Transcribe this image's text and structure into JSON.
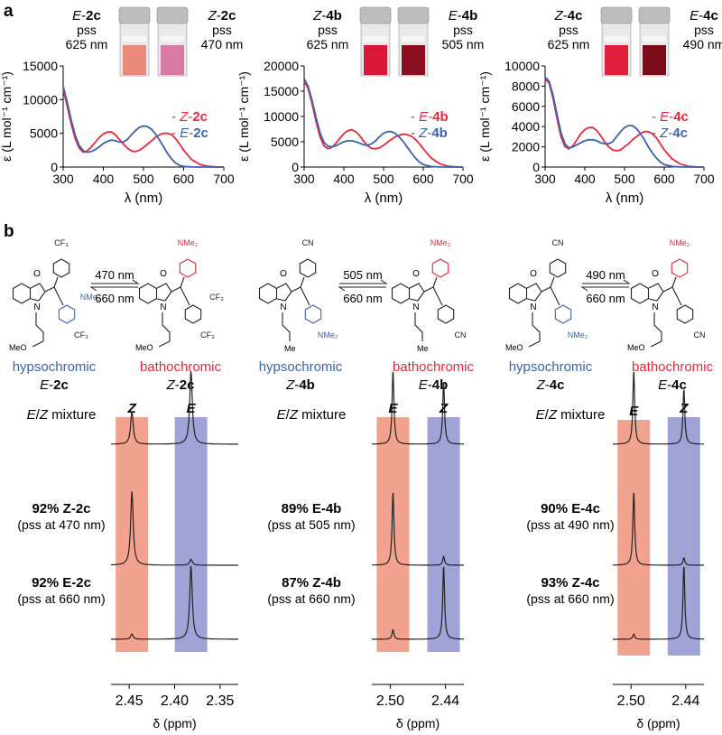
{
  "panel_a_label": "a",
  "panel_b_label": "b",
  "colors": {
    "red": "#e8283a",
    "blue": "#3a62b0",
    "spec": "#222222",
    "shade_red": "#f0937d",
    "shade_blue": "#8e93cf"
  },
  "chart_data": [
    {
      "type": "line",
      "id": "2c",
      "xlabel": "λ (nm)",
      "ylabel": "ε (L mol⁻¹ cm⁻¹)",
      "xlim": [
        300,
        700
      ],
      "ylim": [
        0,
        15000
      ],
      "xticks": [
        300,
        400,
        500,
        600,
        700
      ],
      "yticks": [
        0,
        5000,
        10000,
        15000
      ],
      "cuvettes": [
        {
          "isomer": "E",
          "compound": "-2c",
          "line2": "pss",
          "line3": "625 nm"
        },
        {
          "isomer": "Z",
          "compound": "-2c",
          "line2": "pss",
          "line3": "470 nm"
        }
      ],
      "legend": [
        {
          "isomer": "Z",
          "compound": "-2c",
          "color": "red"
        },
        {
          "isomer": "E",
          "compound": "-2c",
          "color": "blue"
        }
      ],
      "series": [
        {
          "name": "Z-2c",
          "color": "red",
          "x": [
            300,
            310,
            320,
            330,
            340,
            350,
            360,
            370,
            380,
            390,
            400,
            410,
            420,
            430,
            440,
            450,
            460,
            470,
            480,
            490,
            500,
            510,
            520,
            530,
            540,
            550,
            560,
            570,
            580,
            590,
            600,
            620,
            640,
            660,
            680,
            700
          ],
          "y": [
            11500,
            9000,
            6400,
            4200,
            2800,
            2200,
            2400,
            3000,
            3700,
            4400,
            4900,
            5200,
            5200,
            4800,
            4100,
            3400,
            2800,
            2400,
            2300,
            2500,
            2900,
            3400,
            3900,
            4400,
            4800,
            5000,
            5000,
            4800,
            4200,
            3400,
            2500,
            1100,
            400,
            120,
            30,
            0
          ]
        },
        {
          "name": "E-2c",
          "color": "blue",
          "x": [
            300,
            310,
            320,
            330,
            340,
            350,
            360,
            370,
            380,
            390,
            400,
            410,
            420,
            430,
            440,
            450,
            460,
            470,
            480,
            490,
            500,
            510,
            520,
            530,
            540,
            550,
            560,
            570,
            580,
            590,
            600,
            620,
            640,
            660,
            680,
            700
          ],
          "y": [
            12000,
            9600,
            7000,
            4700,
            3200,
            2400,
            2200,
            2300,
            2600,
            3000,
            3500,
            3800,
            4000,
            3900,
            3700,
            3700,
            4100,
            4800,
            5400,
            5900,
            6100,
            6000,
            5600,
            4900,
            4000,
            3000,
            2000,
            1200,
            600,
            250,
            100,
            20,
            0,
            0,
            0,
            0
          ]
        }
      ]
    },
    {
      "type": "line",
      "id": "4b",
      "xlabel": "λ (nm)",
      "ylabel": "ε (L mol⁻¹ cm⁻¹)",
      "xlim": [
        300,
        700
      ],
      "ylim": [
        0,
        20000
      ],
      "xticks": [
        300,
        400,
        500,
        600,
        700
      ],
      "yticks": [
        0,
        5000,
        10000,
        15000,
        20000
      ],
      "cuvettes": [
        {
          "isomer": "Z",
          "compound": "-4b",
          "line2": "pss",
          "line3": "625 nm"
        },
        {
          "isomer": "E",
          "compound": "-4b",
          "line2": "pss",
          "line3": "505 nm"
        }
      ],
      "legend": [
        {
          "isomer": "E",
          "compound": "-4b",
          "color": "red"
        },
        {
          "isomer": "Z",
          "compound": "-4b",
          "color": "blue"
        }
      ],
      "series": [
        {
          "name": "E-4b",
          "color": "red",
          "x": [
            300,
            310,
            320,
            330,
            340,
            350,
            360,
            370,
            380,
            390,
            400,
            410,
            420,
            430,
            440,
            450,
            460,
            470,
            480,
            490,
            500,
            510,
            520,
            530,
            540,
            550,
            560,
            570,
            580,
            590,
            600,
            620,
            640,
            660,
            680,
            700
          ],
          "y": [
            17000,
            15500,
            12500,
            9000,
            6000,
            4200,
            3600,
            3900,
            4700,
            5700,
            6600,
            7200,
            7400,
            7000,
            6200,
            5100,
            4200,
            3700,
            3600,
            3800,
            4300,
            4900,
            5500,
            6000,
            6300,
            6500,
            6400,
            6100,
            5500,
            4600,
            3600,
            1800,
            700,
            200,
            50,
            0
          ]
        },
        {
          "name": "Z-4b",
          "color": "blue",
          "x": [
            300,
            310,
            320,
            330,
            340,
            350,
            360,
            370,
            380,
            390,
            400,
            410,
            420,
            430,
            440,
            450,
            460,
            470,
            480,
            490,
            500,
            510,
            520,
            530,
            540,
            550,
            560,
            570,
            580,
            590,
            600,
            620,
            640,
            660,
            680,
            700
          ],
          "y": [
            17500,
            16000,
            13200,
            9800,
            6800,
            4900,
            4100,
            4000,
            4200,
            4600,
            5000,
            5200,
            5200,
            5000,
            4700,
            4400,
            4300,
            4600,
            5200,
            6000,
            6700,
            7000,
            7000,
            6600,
            5900,
            5000,
            3900,
            2800,
            1800,
            1000,
            500,
            100,
            20,
            0,
            0,
            0
          ]
        }
      ]
    },
    {
      "type": "line",
      "id": "4c",
      "xlabel": "λ (nm)",
      "ylabel": "ε (L mol⁻¹ cm⁻¹)",
      "xlim": [
        300,
        700
      ],
      "ylim": [
        0,
        10000
      ],
      "xticks": [
        300,
        400,
        500,
        600,
        700
      ],
      "yticks": [
        0,
        2000,
        4000,
        6000,
        8000,
        10000
      ],
      "cuvettes": [
        {
          "isomer": "Z",
          "compound": "-4c",
          "line2": "pss",
          "line3": "625 nm"
        },
        {
          "isomer": "E",
          "compound": "-4c",
          "line2": "pss",
          "line3": "490 nm"
        }
      ],
      "legend": [
        {
          "isomer": "E",
          "compound": "-4c",
          "color": "red"
        },
        {
          "isomer": "Z",
          "compound": "-4c",
          "color": "blue"
        }
      ],
      "series": [
        {
          "name": "E-4c",
          "color": "red",
          "x": [
            300,
            310,
            320,
            330,
            340,
            350,
            360,
            370,
            380,
            390,
            400,
            410,
            420,
            430,
            440,
            450,
            460,
            470,
            480,
            490,
            500,
            510,
            520,
            530,
            540,
            550,
            560,
            570,
            580,
            590,
            600,
            620,
            640,
            660,
            680,
            700
          ],
          "y": [
            8700,
            8300,
            6800,
            4800,
            3000,
            2000,
            1800,
            2100,
            2700,
            3300,
            3700,
            3900,
            3900,
            3600,
            3100,
            2500,
            2000,
            1700,
            1600,
            1700,
            2000,
            2300,
            2700,
            3000,
            3300,
            3500,
            3500,
            3300,
            2900,
            2300,
            1700,
            800,
            300,
            80,
            20,
            0
          ]
        },
        {
          "name": "Z-4c",
          "color": "blue",
          "x": [
            300,
            310,
            320,
            330,
            340,
            350,
            360,
            370,
            380,
            390,
            400,
            410,
            420,
            430,
            440,
            450,
            460,
            470,
            480,
            490,
            500,
            510,
            520,
            530,
            540,
            550,
            560,
            570,
            580,
            590,
            600,
            620,
            640,
            660,
            680,
            700
          ],
          "y": [
            8900,
            8500,
            7100,
            5200,
            3400,
            2300,
            1900,
            2000,
            2200,
            2400,
            2600,
            2700,
            2700,
            2600,
            2400,
            2300,
            2300,
            2500,
            3000,
            3500,
            3900,
            4100,
            4100,
            3800,
            3300,
            2700,
            2000,
            1400,
            900,
            500,
            250,
            60,
            10,
            0,
            0,
            0
          ]
        }
      ]
    },
    {
      "type": "line",
      "id": "nmr-2c",
      "xlabel": "δ (ppm)",
      "xlim": [
        2.47,
        2.33
      ],
      "xticks": [
        2.45,
        2.4,
        2.35
      ],
      "xtick_labels": [
        "2.45",
        "2.40",
        "2.35"
      ],
      "bands": [
        {
          "label": "Z",
          "center": 2.447,
          "color": "shade_red"
        },
        {
          "label": "E",
          "center": 2.382,
          "color": "shade_blue"
        }
      ],
      "traces": [
        {
          "label_prefix": "",
          "label_bold": "",
          "label_suffix": "",
          "italic_parts": [
            "E",
            "/",
            "Z",
            " mixture"
          ],
          "sub": "",
          "peaks": [
            {
              "pos": 2.447,
              "height": 0.45
            },
            {
              "pos": 2.382,
              "height": 1.0
            }
          ]
        },
        {
          "label_bold": "92% Z-2c",
          "sub": "(pss at 470 nm)",
          "peaks": [
            {
              "pos": 2.447,
              "height": 1.0
            },
            {
              "pos": 2.382,
              "height": 0.08
            }
          ]
        },
        {
          "label_bold": "92% E-2c",
          "sub": "(pss at 660 nm)",
          "peaks": [
            {
              "pos": 2.447,
              "height": 0.07
            },
            {
              "pos": 2.382,
              "height": 1.0
            }
          ]
        }
      ]
    },
    {
      "type": "line",
      "id": "nmr-4b",
      "xlabel": "δ (ppm)",
      "xlim": [
        2.52,
        2.42
      ],
      "xticks": [
        2.5,
        2.44
      ],
      "xtick_labels": [
        "2.50",
        "2.44"
      ],
      "bands": [
        {
          "label": "E",
          "center": 2.497,
          "color": "shade_red"
        },
        {
          "label": "Z",
          "center": 2.442,
          "color": "shade_blue"
        }
      ],
      "traces": [
        {
          "italic_parts": [
            "E",
            "/",
            "Z",
            " mixture"
          ],
          "sub": "",
          "peaks": [
            {
              "pos": 2.497,
              "height": 1.0
            },
            {
              "pos": 2.442,
              "height": 0.85
            }
          ]
        },
        {
          "label_bold": "89% E-4b",
          "sub": "(pss at 505 nm)",
          "peaks": [
            {
              "pos": 2.497,
              "height": 1.0
            },
            {
              "pos": 2.442,
              "height": 0.12
            }
          ]
        },
        {
          "label_bold": "87% Z-4b",
          "sub": "(pss at 660 nm)",
          "peaks": [
            {
              "pos": 2.497,
              "height": 0.13
            },
            {
              "pos": 2.442,
              "height": 1.0
            }
          ]
        }
      ]
    },
    {
      "type": "line",
      "id": "nmr-4c",
      "xlabel": "δ (ppm)",
      "xlim": [
        2.52,
        2.42
      ],
      "xticks": [
        2.5,
        2.44
      ],
      "xtick_labels": [
        "2.50",
        "2.44"
      ],
      "bands": [
        {
          "label": "E",
          "center": 2.497,
          "color": "shade_red"
        },
        {
          "label": "Z",
          "center": 2.442,
          "color": "shade_blue"
        }
      ],
      "traces": [
        {
          "italic_parts": [
            "E",
            "/",
            "Z",
            " mixture"
          ],
          "sub": "",
          "peaks": [
            {
              "pos": 2.497,
              "height": 1.0
            },
            {
              "pos": 2.442,
              "height": 0.75
            }
          ]
        },
        {
          "label_bold": "90% E-4c",
          "sub": "(pss at 490 nm)",
          "peaks": [
            {
              "pos": 2.497,
              "height": 1.0
            },
            {
              "pos": 2.442,
              "height": 0.1
            }
          ]
        },
        {
          "label_bold": "93% Z-4c",
          "sub": "(pss at 660 nm)",
          "peaks": [
            {
              "pos": 2.497,
              "height": 0.07
            },
            {
              "pos": 2.442,
              "height": 1.0
            }
          ]
        }
      ]
    }
  ],
  "panel_b": {
    "structures": [
      {
        "class": "hypsochromic",
        "color": "blue",
        "isomer": "E",
        "compound": "-2c",
        "substituents": [
          "CF₃",
          "CF₃",
          "NMe₂"
        ],
        "chain": "MeO"
      },
      {
        "class": "bathochromic",
        "color": "red",
        "isomer": "Z",
        "compound": "-2c",
        "substituents": [
          "NMe₂",
          "CF₃",
          "CF₃"
        ],
        "chain": "MeO"
      },
      {
        "class": "hypsochromic",
        "color": "blue",
        "isomer": "Z",
        "compound": "-4b",
        "substituents": [
          "CN",
          "NMe₂"
        ],
        "chain": "Me"
      },
      {
        "class": "bathochromic",
        "color": "red",
        "isomer": "E",
        "compound": "-4b",
        "substituents": [
          "NMe₂",
          "CN"
        ],
        "chain": "Me"
      },
      {
        "class": "hypsochromic",
        "color": "blue",
        "isomer": "Z",
        "compound": "-4c",
        "substituents": [
          "CN",
          "NMe₂"
        ],
        "chain": "MeO"
      },
      {
        "class": "bathochromic",
        "color": "red",
        "isomer": "E",
        "compound": "-4c",
        "substituents": [
          "NMe₂",
          "CN"
        ],
        "chain": "MeO"
      }
    ],
    "arrows": [
      {
        "top": "470 nm",
        "bottom": "660 nm"
      },
      {
        "top": "505 nm",
        "bottom": "660 nm"
      },
      {
        "top": "490 nm",
        "bottom": "660 nm"
      }
    ],
    "atoms": {
      "O": "O",
      "N": "N"
    }
  }
}
